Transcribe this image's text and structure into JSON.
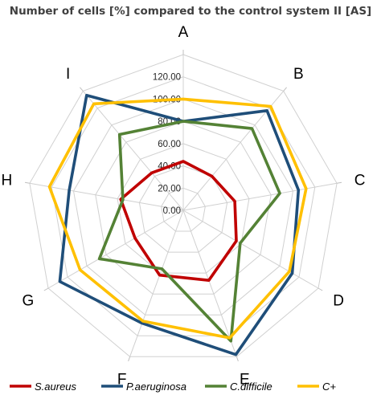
{
  "chart_data": {
    "type": "radar",
    "title": "Number of cells [%] compared to the control system II [AS]",
    "categories": [
      "A",
      "B",
      "C",
      "D",
      "E",
      "F",
      "G",
      "H",
      "I"
    ],
    "r_ticks": [
      "0.00",
      "20.00",
      "40.00",
      "60.00",
      "80.00",
      "100.00",
      "120.00"
    ],
    "rlim": [
      0,
      140
    ],
    "grid": true,
    "legend_position": "bottom",
    "series": [
      {
        "name": "S.aureus",
        "color": "#c00000",
        "values": [
          44,
          40,
          47,
          55,
          67,
          62,
          50,
          57,
          44
        ]
      },
      {
        "name": "P.aeruginosa",
        "color": "#1f4e79",
        "values": [
          80,
          117,
          105,
          113,
          138,
          108,
          128,
          104,
          135
        ]
      },
      {
        "name": "C.difficile",
        "color": "#548235",
        "values": [
          80,
          96,
          88,
          59,
          125,
          56,
          87,
          55,
          89
        ]
      },
      {
        "name": "C+",
        "color": "#ffc000",
        "values": [
          100,
          122,
          112,
          110,
          122,
          106,
          107,
          122,
          125
        ]
      }
    ]
  }
}
